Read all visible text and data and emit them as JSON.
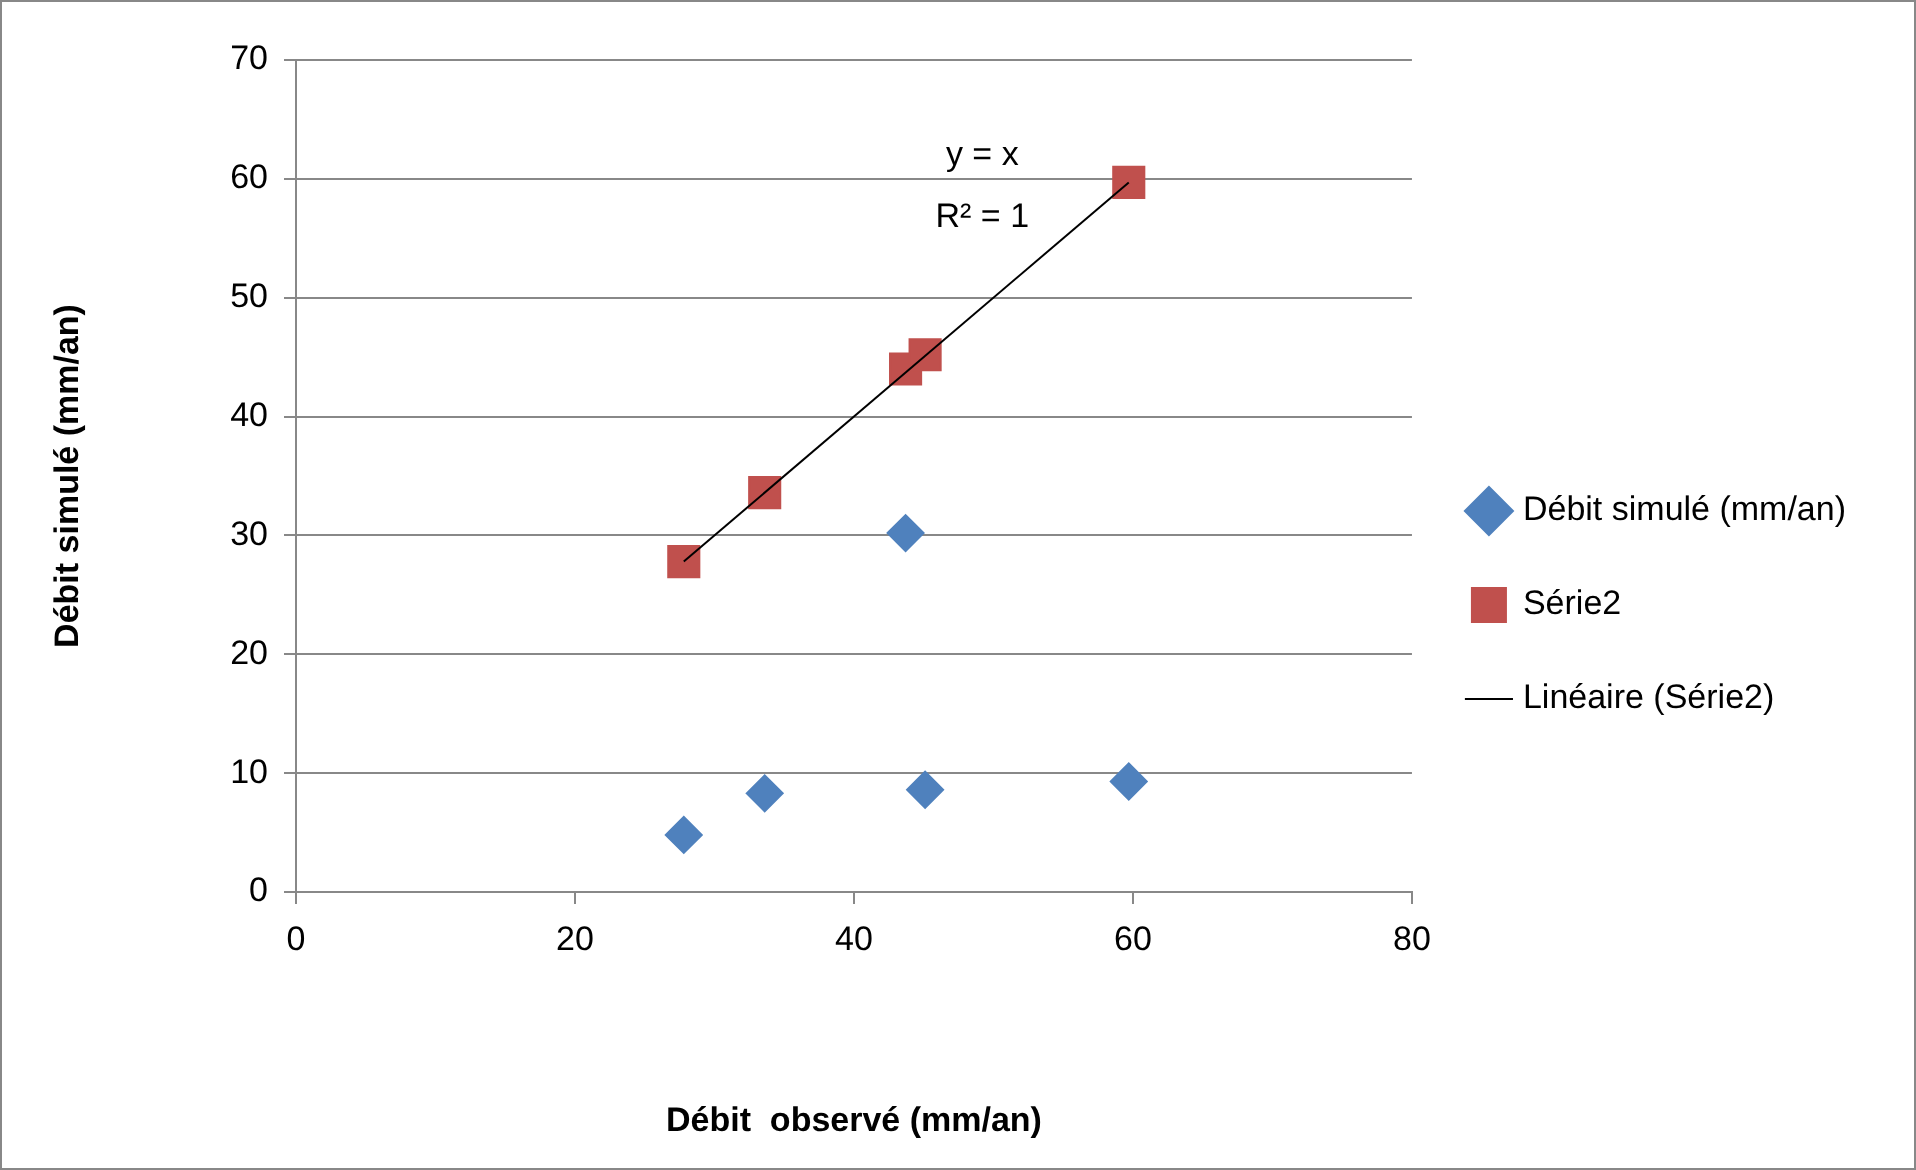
{
  "chart_data": {
    "type": "scatter",
    "xlabel": "Débit  observé (mm/an)",
    "ylabel": "Débit simulé (mm/an)",
    "xlim": [
      0,
      80
    ],
    "xticks": [
      0,
      20,
      40,
      60,
      80
    ],
    "ylim": [
      0,
      70
    ],
    "yticks": [
      0,
      10,
      20,
      30,
      40,
      50,
      60,
      70
    ],
    "grid": "y",
    "legend": "right",
    "series": [
      {
        "name": "Débit simulé (mm/an)",
        "type": "scatter",
        "marker": "diamond",
        "color": "#4f81bd",
        "x": [
          27.8,
          33.6,
          43.7,
          45.1,
          59.7
        ],
        "values": [
          4.8,
          8.3,
          30.2,
          8.6,
          9.3
        ]
      },
      {
        "name": "Série2",
        "type": "scatter",
        "marker": "square",
        "color": "#c0504d",
        "x": [
          27.8,
          33.6,
          43.7,
          45.1,
          59.7
        ],
        "values": [
          27.8,
          33.6,
          44.0,
          45.2,
          59.7
        ]
      },
      {
        "name": "Linéaire (Série2)",
        "type": "line",
        "marker": "none",
        "color": "#000000",
        "x": [
          27.8,
          59.7
        ],
        "values": [
          27.8,
          59.7
        ]
      }
    ],
    "annotations": [
      "y = x",
      "R² = 1"
    ]
  }
}
